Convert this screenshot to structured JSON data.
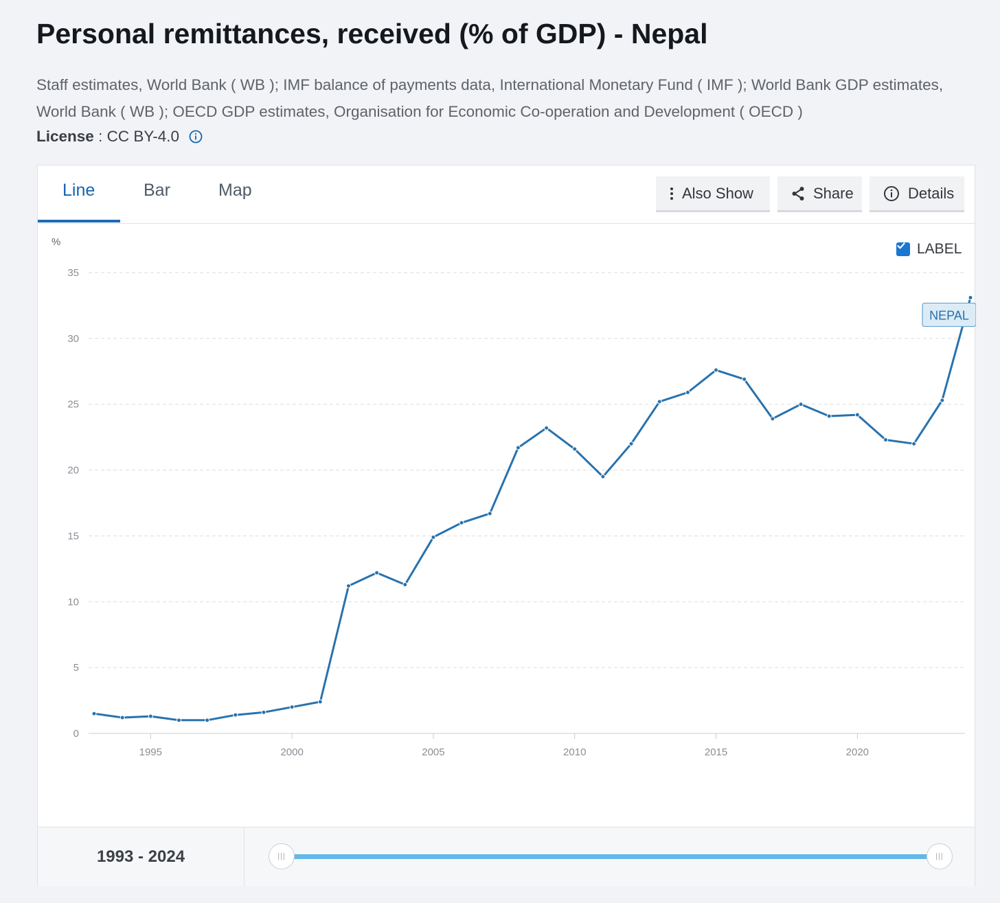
{
  "header": {
    "title": "Personal remittances, received (% of GDP) - Nepal",
    "source": "Staff estimates, World Bank ( WB ); IMF balance of payments data, International Monetary Fund ( IMF ); World Bank GDP estimates, World Bank ( WB ); OECD GDP estimates, Organisation for Economic Co-operation and Development ( OECD )",
    "license_label": "License",
    "license_value": ": CC BY-4.0"
  },
  "tabs": [
    {
      "label": "Line",
      "active": true
    },
    {
      "label": "Bar",
      "active": false
    },
    {
      "label": "Map",
      "active": false
    }
  ],
  "toolbar": {
    "also_show": "Also Show",
    "share": "Share",
    "details": "Details"
  },
  "legend": {
    "checkbox_label": "LABEL",
    "checked": true
  },
  "colors": {
    "series": "#2872ad",
    "accent": "#1565ad",
    "slider": "#63b7e8"
  },
  "chart_data": {
    "type": "line",
    "title": "Personal remittances, received (% of GDP) - Nepal",
    "ylabel": "%",
    "xlabel": "",
    "ylim": [
      0,
      35
    ],
    "xlim": [
      1993,
      2024
    ],
    "yticks": [
      0,
      5,
      10,
      15,
      20,
      25,
      30,
      35
    ],
    "xticks": [
      1995,
      2000,
      2005,
      2010,
      2015,
      2020
    ],
    "grid": true,
    "series": [
      {
        "name": "NEPAL",
        "x": [
          1993,
          1994,
          1995,
          1996,
          1997,
          1998,
          1999,
          2000,
          2001,
          2002,
          2003,
          2004,
          2005,
          2006,
          2007,
          2008,
          2009,
          2010,
          2011,
          2012,
          2013,
          2014,
          2015,
          2016,
          2017,
          2018,
          2019,
          2020,
          2021,
          2022,
          2023,
          2024
        ],
        "y": [
          1.5,
          1.2,
          1.3,
          1.0,
          1.0,
          1.4,
          1.6,
          2.0,
          2.4,
          11.2,
          12.2,
          11.3,
          14.9,
          16.0,
          16.7,
          21.7,
          23.2,
          21.6,
          19.5,
          22.0,
          25.2,
          25.9,
          27.6,
          26.9,
          23.9,
          25.0,
          24.1,
          24.2,
          22.3,
          22.0,
          25.3,
          33.1
        ]
      }
    ]
  },
  "range": {
    "label": "1993 - 2024",
    "start": 1993,
    "end": 2024
  }
}
